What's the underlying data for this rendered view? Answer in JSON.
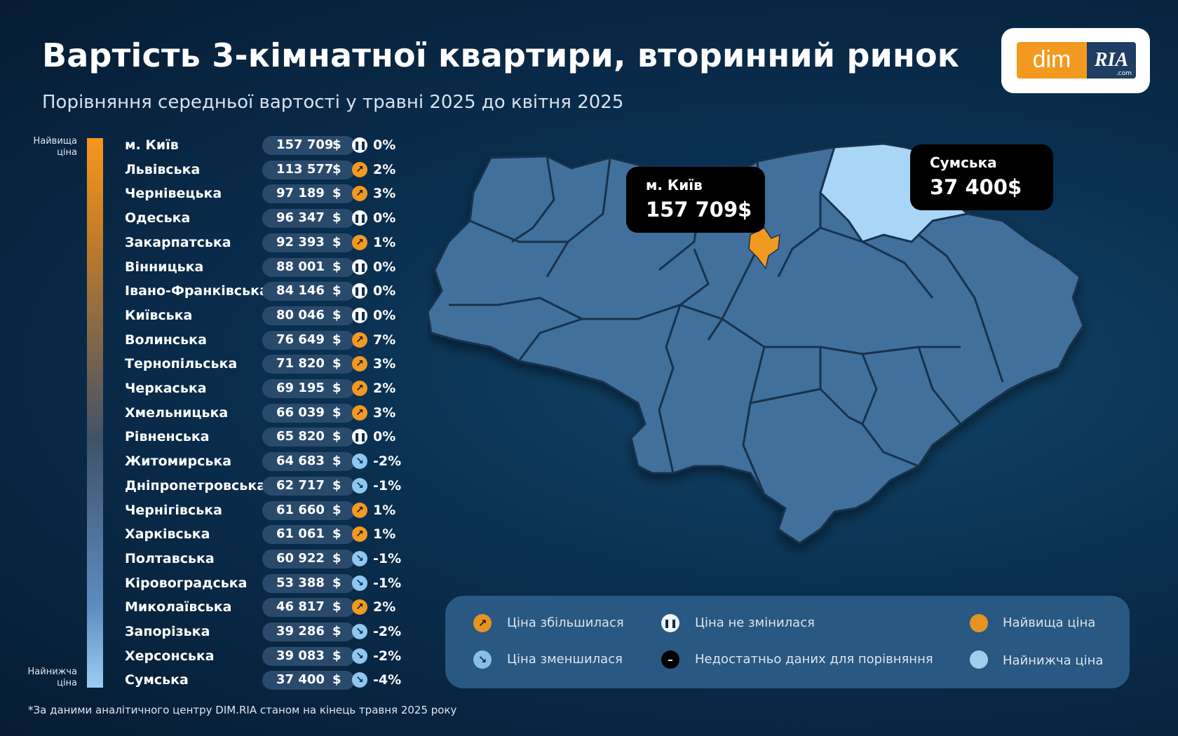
{
  "header": {
    "title": "Вартість 3-кімнатної квартири, вторинний ринок",
    "subtitle": "Порівняння середньої вартості у травні 2025 до квітня 2025"
  },
  "logo": {
    "dim": "dim",
    "ria": "RIA",
    "com": ".com"
  },
  "scale": {
    "top": "Найвища ціна",
    "bottom": "Найнижча ціна"
  },
  "currency": "$",
  "colors": {
    "increase": "#f29a1f",
    "decrease": "#8ec8f1",
    "highest": "#f29a1f",
    "lowest": "#a9d6f6"
  },
  "regions": [
    {
      "name": "м. Київ",
      "value": "157 709",
      "trend": "same",
      "pct": "0%"
    },
    {
      "name": "Львівська",
      "value": "113 577",
      "trend": "up",
      "pct": "2%"
    },
    {
      "name": "Чернівецька",
      "value": "97 189",
      "trend": "up",
      "pct": "3%"
    },
    {
      "name": "Одеська",
      "value": "96 347",
      "trend": "same",
      "pct": "0%"
    },
    {
      "name": "Закарпатська",
      "value": "92 393",
      "trend": "up",
      "pct": "1%"
    },
    {
      "name": "Вінницька",
      "value": "88 001",
      "trend": "same",
      "pct": "0%"
    },
    {
      "name": "Івано-Франківська",
      "value": "84 146",
      "trend": "same",
      "pct": "0%"
    },
    {
      "name": "Київська",
      "value": "80 046",
      "trend": "same",
      "pct": "0%"
    },
    {
      "name": "Волинська",
      "value": "76 649",
      "trend": "up",
      "pct": "7%"
    },
    {
      "name": "Тернопільська",
      "value": "71 820",
      "trend": "up",
      "pct": "3%"
    },
    {
      "name": "Черкаська",
      "value": "69 195",
      "trend": "up",
      "pct": "2%"
    },
    {
      "name": "Хмельницька",
      "value": "66 039",
      "trend": "up",
      "pct": "3%"
    },
    {
      "name": "Рівненська",
      "value": "65 820",
      "trend": "same",
      "pct": "0%"
    },
    {
      "name": "Житомирська",
      "value": "64 683",
      "trend": "down",
      "pct": "-2%"
    },
    {
      "name": "Дніпропетровська",
      "value": "62 717",
      "trend": "down",
      "pct": "-1%"
    },
    {
      "name": "Чернігівська",
      "value": "61 660",
      "trend": "up",
      "pct": "1%"
    },
    {
      "name": "Харківська",
      "value": "61 061",
      "trend": "up",
      "pct": "1%"
    },
    {
      "name": "Полтавська",
      "value": "60 922",
      "trend": "down",
      "pct": "-1%"
    },
    {
      "name": "Кіровоградська",
      "value": "53 388",
      "trend": "down",
      "pct": "-1%"
    },
    {
      "name": "Миколаївська",
      "value": "46 817",
      "trend": "up",
      "pct": "2%"
    },
    {
      "name": "Запорізька",
      "value": "39 286",
      "trend": "down",
      "pct": "-2%"
    },
    {
      "name": "Херсонська",
      "value": "39 083",
      "trend": "down",
      "pct": "-2%"
    },
    {
      "name": "Сумська",
      "value": "37 400",
      "trend": "down",
      "pct": "-4%"
    }
  ],
  "callouts": {
    "kyiv": {
      "name": "м. Київ",
      "value": "157 709$"
    },
    "sumy": {
      "name": "Сумська",
      "value": "37 400$"
    }
  },
  "legend": {
    "increase": "Ціна збільшилася",
    "decrease": "Ціна зменшилася",
    "same": "Ціна не змінилася",
    "nodata": "Недостатньо даних для порівняння",
    "highest": "Найвища ціна",
    "lowest": "Найнижча ціна"
  },
  "footnote": "*За даними аналітичного центру DIM.RIA станом на кінець травня 2025 року"
}
